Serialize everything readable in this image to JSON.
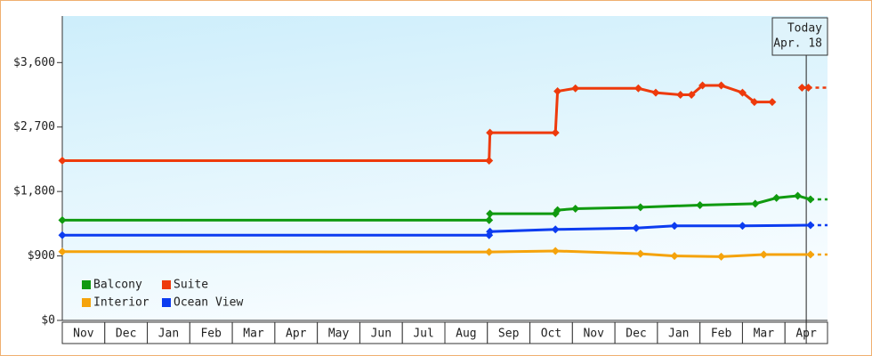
{
  "chart_data": {
    "type": "line",
    "categories": [
      "Nov",
      "Dec",
      "Jan",
      "Feb",
      "Mar",
      "Apr",
      "May",
      "Jun",
      "Jul",
      "Aug",
      "Sep",
      "Oct",
      "Nov",
      "Dec",
      "Jan",
      "Feb",
      "Mar",
      "Apr"
    ],
    "xlim": [
      0,
      18
    ],
    "ylim": [
      0,
      4250
    ],
    "yticks": [
      {
        "value": 0,
        "label": "$0"
      },
      {
        "value": 900,
        "label": "$900"
      },
      {
        "value": 1800,
        "label": "$1,800"
      },
      {
        "value": 2700,
        "label": "$2,700"
      },
      {
        "value": 3600,
        "label": "$3,600"
      }
    ],
    "series": [
      {
        "name": "Balcony",
        "color": "#109a10",
        "x": [
          0,
          10.04,
          10.06,
          11.6,
          11.65,
          12.07,
          13.6,
          15.0,
          16.3,
          16.8,
          17.3,
          17.6
        ],
        "values": [
          1400,
          1400,
          1490,
          1490,
          1540,
          1560,
          1580,
          1610,
          1630,
          1710,
          1740,
          1690
        ]
      },
      {
        "name": "Suite",
        "color": "#ee3a0c",
        "x": [
          0,
          10.04,
          10.06,
          11.6,
          11.65,
          12.07,
          13.55,
          13.96,
          14.54,
          14.8,
          15.06,
          15.5,
          16.0,
          16.28,
          16.7,
          17.0,
          17.4,
          17.55
        ],
        "values": [
          2230,
          2230,
          2620,
          2620,
          3200,
          3240,
          3240,
          3180,
          3150,
          3150,
          3280,
          3280,
          3180,
          3050,
          3050,
          null,
          3250,
          3250
        ]
      },
      {
        "name": "Interior",
        "color": "#f5a30c",
        "x": [
          0,
          10.04,
          11.6,
          13.6,
          14.4,
          15.5,
          16.5,
          17.6
        ],
        "values": [
          960,
          955,
          970,
          930,
          900,
          890,
          920,
          920
        ]
      },
      {
        "name": "Ocean View",
        "color": "#0c3cf0",
        "x": [
          0,
          10.04,
          10.06,
          11.6,
          13.5,
          14.4,
          16.0,
          17.6
        ],
        "values": [
          1190,
          1190,
          1240,
          1270,
          1290,
          1320,
          1320,
          1330
        ]
      }
    ],
    "today": {
      "x": 17.5,
      "label": [
        "Today",
        "Apr. 18"
      ]
    }
  }
}
